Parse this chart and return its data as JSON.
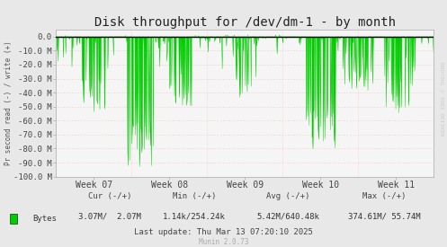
{
  "title": "Disk throughput for /dev/dm-1 - by month",
  "ylabel": "Pr second read (-) / write (+)",
  "ylim": [
    -100000000,
    5000000
  ],
  "yticks": [
    0,
    -10000000,
    -20000000,
    -30000000,
    -40000000,
    -50000000,
    -60000000,
    -70000000,
    -80000000,
    -90000000,
    -100000000
  ],
  "ytick_labels": [
    "0.0",
    "-10.0 M",
    "-20.0 M",
    "-30.0 M",
    "-40.0 M",
    "-50.0 M",
    "-60.0 M",
    "-70.0 M",
    "-80.0 M",
    "-90.0 M",
    "-100.0 M"
  ],
  "xtick_labels": [
    "Week 07",
    "Week 08",
    "Week 09",
    "Week 10",
    "Week 11"
  ],
  "bg_color": "#e8e8e8",
  "plot_bg_color": "#f5f5f5",
  "grid_color": "#ffb0b0",
  "line_color": "#00cc00",
  "zero_line_color": "#000000",
  "legend_label": "Bytes",
  "legend_color": "#00cc00",
  "cur_label": "Cur (-/+)",
  "cur_val": "3.07M/  2.07M",
  "min_label": "Min (-/+)",
  "min_val": "1.14k/254.24k",
  "avg_label": "Avg (-/+)",
  "avg_val": "5.42M/640.48k",
  "max_label": "Max (-/+)",
  "max_val": "374.61M/ 55.74M",
  "last_update": "Last update: Thu Mar 13 07:20:10 2025",
  "munin_version": "Munin 2.0.73",
  "rrdtool_label": "RRDTOOL / TOBI OETIKER",
  "title_fontsize": 10,
  "axis_fontsize": 6.5,
  "legend_fontsize": 6.5,
  "n_points": 800
}
